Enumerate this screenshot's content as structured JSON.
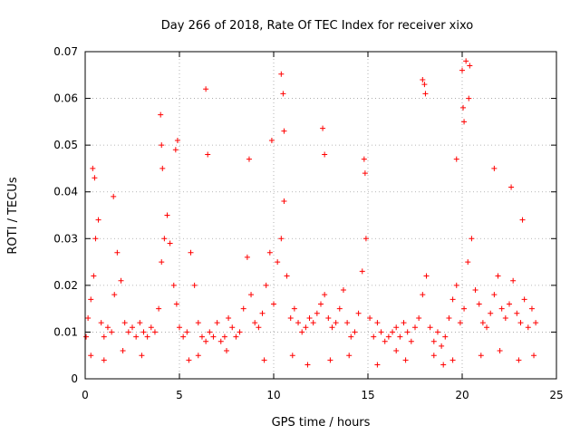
{
  "chart_data": {
    "type": "scatter",
    "title": "Day 266 of 2018, Rate Of TEC Index for receiver xixo",
    "xlabel": "GPS time / hours",
    "ylabel": "ROTI / TECUs",
    "xlim": [
      0,
      25
    ],
    "ylim": [
      0,
      0.07
    ],
    "xticks": [
      0,
      5,
      10,
      15,
      20,
      25
    ],
    "yticks": [
      0,
      0.01,
      0.02,
      0.03,
      0.04,
      0.05,
      0.06,
      0.07
    ],
    "xtick_labels": [
      "0",
      "5",
      "10",
      "15",
      "20",
      "25"
    ],
    "ytick_labels": [
      "0",
      "0.01",
      "0.02",
      "0.03",
      "0.04",
      "0.05",
      "0.06",
      "0.07"
    ],
    "grid": true,
    "marker": "+",
    "series": [
      {
        "name": "ROTI",
        "color": "#ff0000",
        "x": [
          0.05,
          0.15,
          0.3,
          0.45,
          0.55,
          0.7,
          0.85,
          1.0,
          1.2,
          1.4,
          1.55,
          1.7,
          1.9,
          2.1,
          2.3,
          2.5,
          2.7,
          2.9,
          3.1,
          3.3,
          3.5,
          3.7,
          3.9,
          4.05,
          4.2,
          4.35,
          4.5,
          4.7,
          4.85,
          5.0,
          5.2,
          5.4,
          5.6,
          5.8,
          6.0,
          6.2,
          6.4,
          6.6,
          6.8,
          7.0,
          7.2,
          7.4,
          7.6,
          7.8,
          8.0,
          8.2,
          8.4,
          8.6,
          8.8,
          9.0,
          9.2,
          9.4,
          9.6,
          9.8,
          10.0,
          10.2,
          10.4,
          10.55,
          10.7,
          10.9,
          11.1,
          11.3,
          11.5,
          11.7,
          11.9,
          12.1,
          12.3,
          12.5,
          12.7,
          12.9,
          13.1,
          13.3,
          13.5,
          13.7,
          13.9,
          14.1,
          14.3,
          14.5,
          14.7,
          14.9,
          15.1,
          15.3,
          15.5,
          15.7,
          15.9,
          16.1,
          16.3,
          16.5,
          16.7,
          16.9,
          17.1,
          17.3,
          17.5,
          17.7,
          17.9,
          18.1,
          18.3,
          18.5,
          18.7,
          18.9,
          19.1,
          19.3,
          19.5,
          19.7,
          19.9,
          20.1,
          20.3,
          20.5,
          20.7,
          20.9,
          21.1,
          21.3,
          21.5,
          21.7,
          21.9,
          22.1,
          22.3,
          22.5,
          22.7,
          22.9,
          23.1,
          23.3,
          23.5,
          23.7,
          23.9,
          0.4,
          0.5,
          1.5,
          4.0,
          4.05,
          4.1,
          4.8,
          4.9,
          6.4,
          6.5,
          8.7,
          9.9,
          10.4,
          10.5,
          10.55,
          12.6,
          12.7,
          14.8,
          14.85,
          17.9,
          18.0,
          18.05,
          19.7,
          20.0,
          20.05,
          20.1,
          20.2,
          20.35,
          20.4,
          21.7,
          22.6,
          23.2,
          0.3,
          1.0,
          2.0,
          3.0,
          5.5,
          6.0,
          7.5,
          9.5,
          11.0,
          11.8,
          13.0,
          14.0,
          15.5,
          16.5,
          17.0,
          18.5,
          19.0,
          19.5,
          21.0,
          22.0,
          23.0,
          23.8
        ],
        "y": [
          0.009,
          0.013,
          0.017,
          0.022,
          0.03,
          0.034,
          0.012,
          0.009,
          0.011,
          0.01,
          0.018,
          0.027,
          0.021,
          0.012,
          0.01,
          0.011,
          0.009,
          0.012,
          0.01,
          0.009,
          0.011,
          0.01,
          0.015,
          0.025,
          0.03,
          0.035,
          0.029,
          0.02,
          0.016,
          0.011,
          0.009,
          0.01,
          0.027,
          0.02,
          0.012,
          0.009,
          0.008,
          0.01,
          0.009,
          0.012,
          0.008,
          0.009,
          0.013,
          0.011,
          0.009,
          0.01,
          0.015,
          0.026,
          0.018,
          0.012,
          0.011,
          0.014,
          0.02,
          0.027,
          0.016,
          0.025,
          0.03,
          0.038,
          0.022,
          0.013,
          0.015,
          0.012,
          0.01,
          0.011,
          0.013,
          0.012,
          0.014,
          0.016,
          0.018,
          0.013,
          0.011,
          0.012,
          0.015,
          0.019,
          0.012,
          0.009,
          0.01,
          0.014,
          0.023,
          0.03,
          0.013,
          0.009,
          0.012,
          0.01,
          0.008,
          0.009,
          0.01,
          0.011,
          0.009,
          0.012,
          0.01,
          0.008,
          0.011,
          0.013,
          0.018,
          0.022,
          0.011,
          0.008,
          0.01,
          0.007,
          0.009,
          0.013,
          0.017,
          0.02,
          0.012,
          0.015,
          0.025,
          0.03,
          0.019,
          0.016,
          0.012,
          0.011,
          0.014,
          0.018,
          0.022,
          0.015,
          0.013,
          0.016,
          0.021,
          0.014,
          0.012,
          0.017,
          0.011,
          0.015,
          0.012,
          0.045,
          0.043,
          0.039,
          0.0565,
          0.05,
          0.045,
          0.049,
          0.051,
          0.062,
          0.048,
          0.047,
          0.051,
          0.0652,
          0.061,
          0.053,
          0.0536,
          0.048,
          0.047,
          0.044,
          0.064,
          0.063,
          0.061,
          0.047,
          0.066,
          0.058,
          0.055,
          0.068,
          0.06,
          0.067,
          0.045,
          0.041,
          0.034,
          0.005,
          0.004,
          0.006,
          0.005,
          0.004,
          0.005,
          0.006,
          0.004,
          0.005,
          0.003,
          0.004,
          0.005,
          0.003,
          0.006,
          0.004,
          0.005,
          0.003,
          0.004,
          0.005,
          0.006,
          0.004,
          0.005
        ]
      }
    ]
  }
}
